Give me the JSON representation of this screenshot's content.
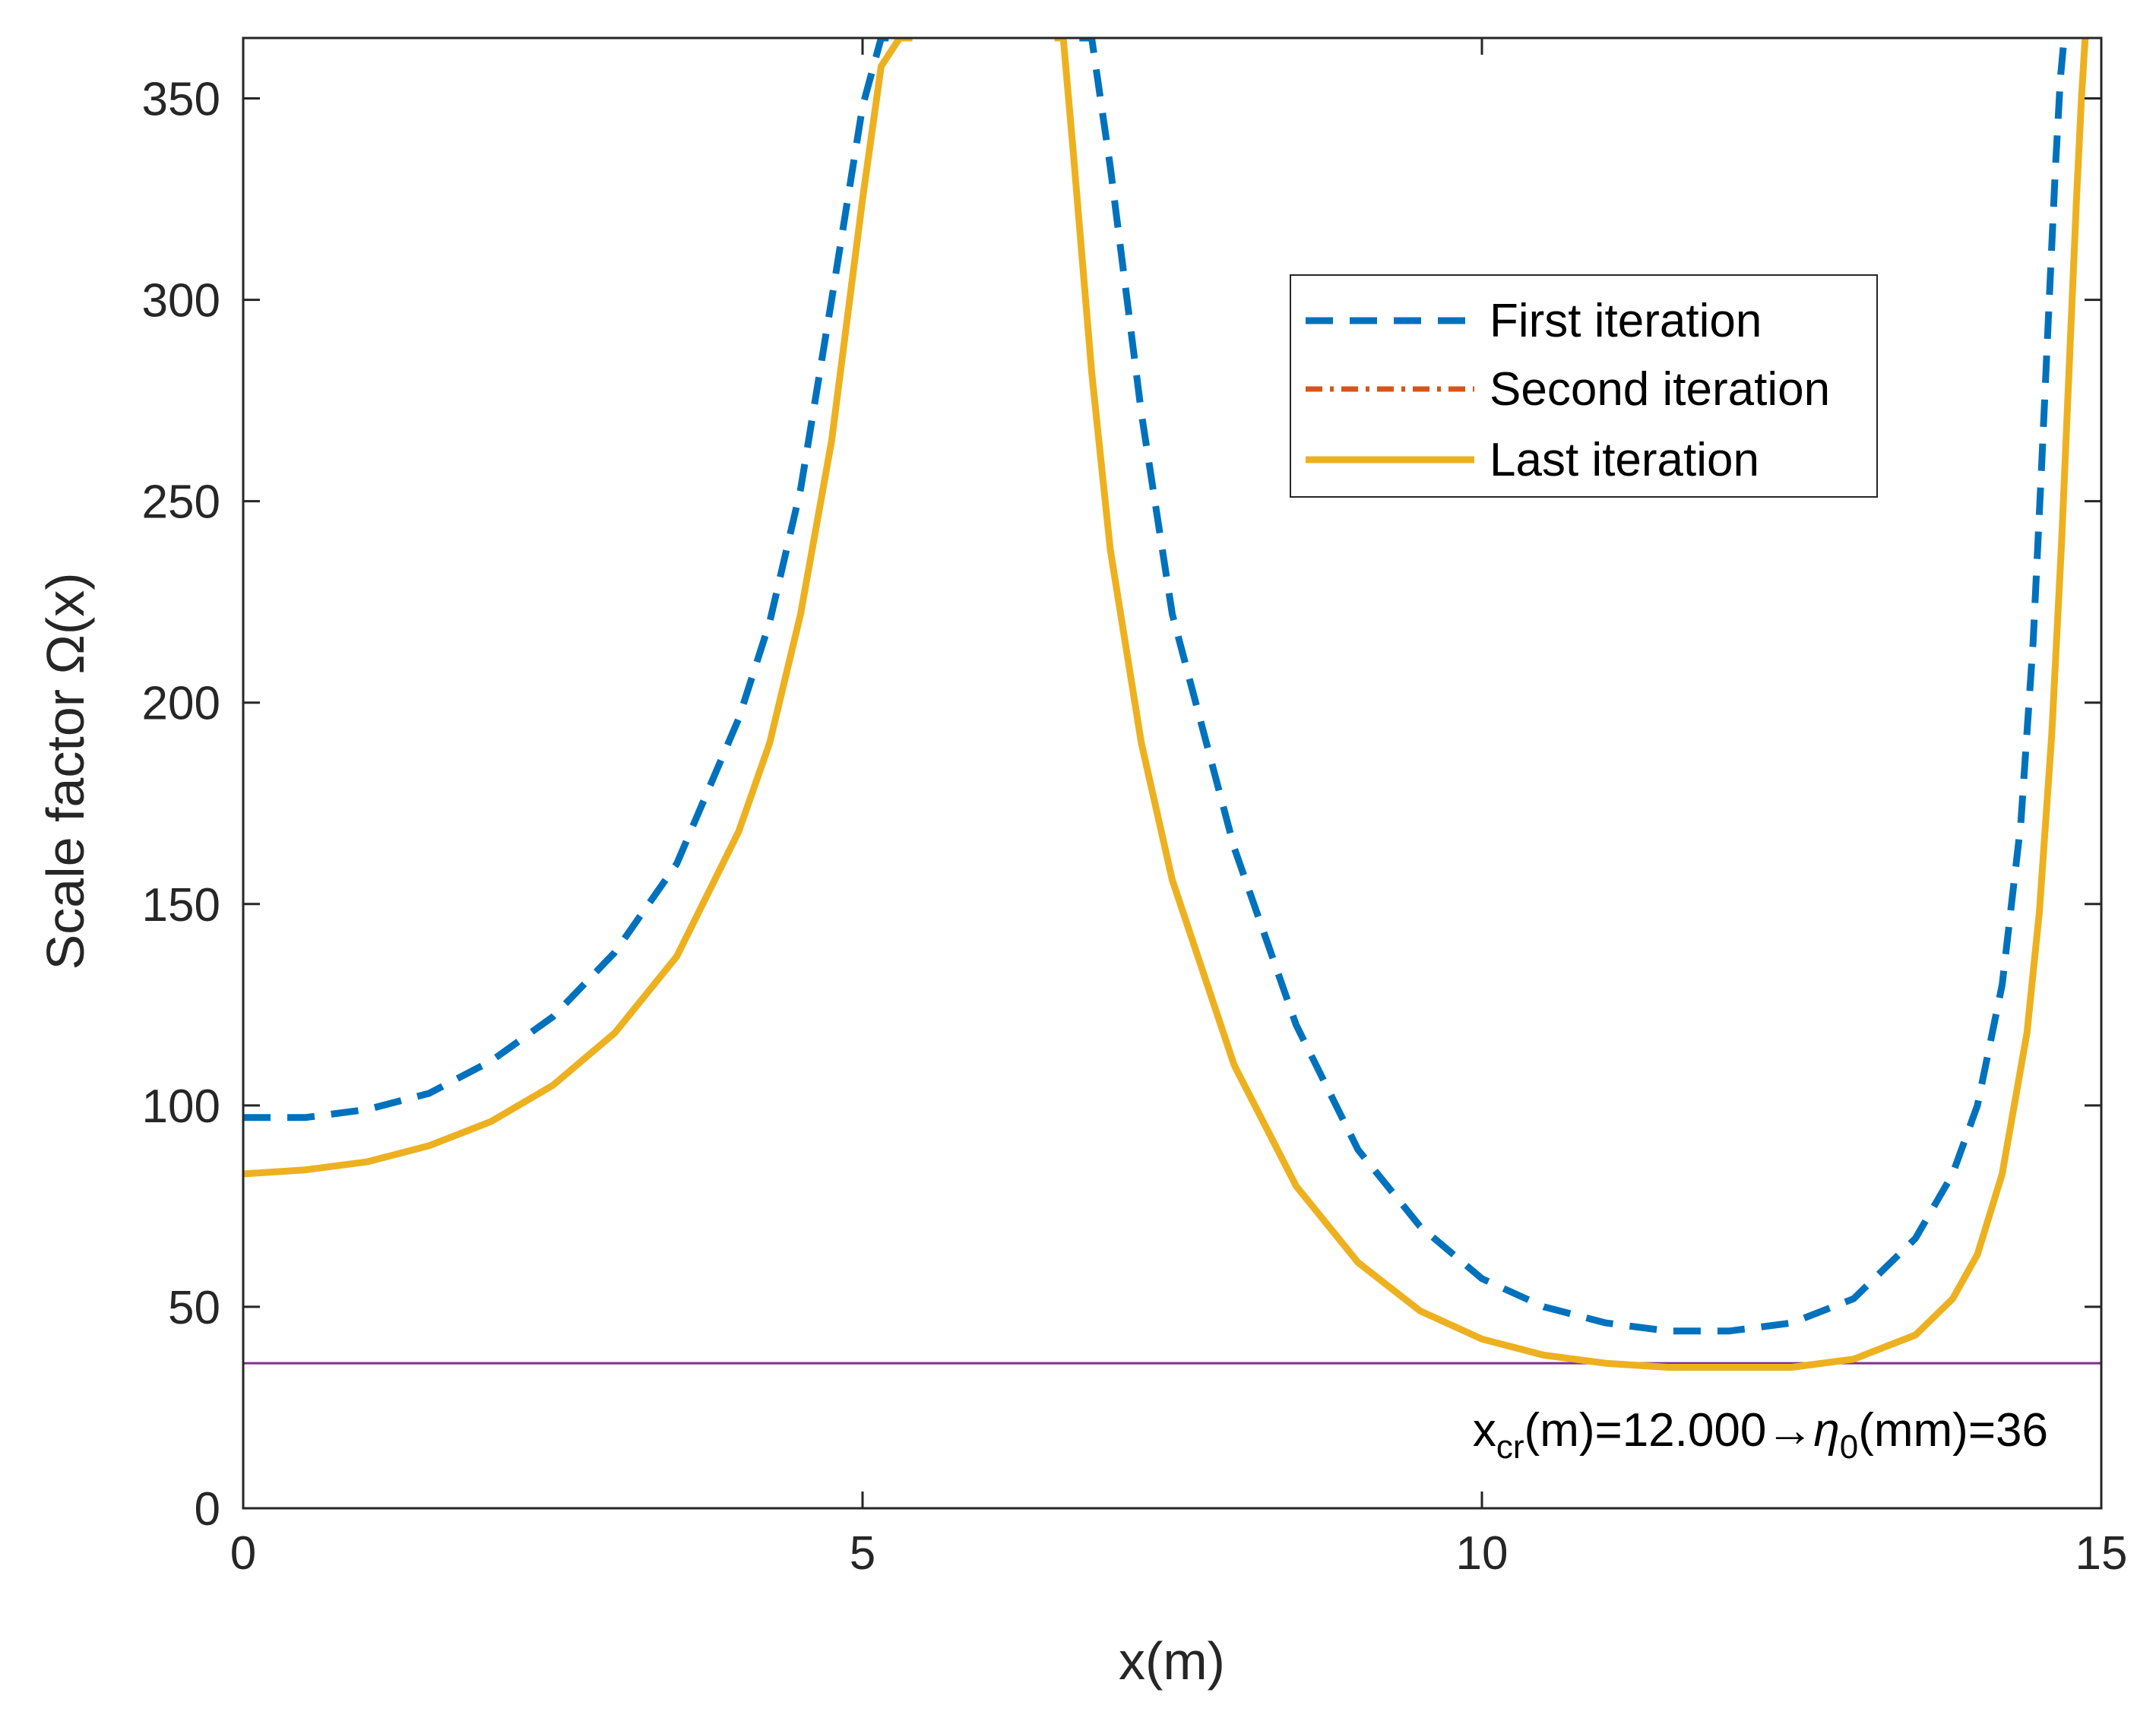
{
  "chart_data": {
    "type": "line",
    "xlabel": "x(m)",
    "ylabel": "Scale factor Ω(x)",
    "xlim": [
      0,
      15
    ],
    "ylim": [
      0,
      365
    ],
    "xticks": [
      0,
      5,
      10,
      15
    ],
    "yticks": [
      0,
      50,
      100,
      150,
      200,
      250,
      300,
      350
    ],
    "grid": false,
    "legend_position": "top-right",
    "series": [
      {
        "name": "First iteration",
        "color": "#0072BD",
        "style": "dashed",
        "x": [
          0,
          0.5,
          1,
          1.5,
          2,
          2.5,
          3,
          3.5,
          4,
          4.25,
          4.5,
          4.75,
          5.0,
          5.15,
          5.3,
          5.4,
          6.75,
          6.85,
          7.0,
          7.25,
          7.5,
          8.0,
          8.5,
          9.0,
          9.5,
          10.0,
          10.5,
          11.0,
          11.5,
          12.0,
          12.5,
          13.0,
          13.5,
          13.8,
          14.0,
          14.2,
          14.35,
          14.45,
          14.52,
          14.58,
          14.63,
          14.67,
          14.7
        ],
        "y": [
          97,
          97,
          99,
          103,
          111,
          122,
          138,
          160,
          196,
          220,
          253,
          300,
          348,
          365,
          365,
          365,
          365,
          365,
          333,
          272,
          222,
          164,
          120,
          89,
          70,
          57,
          50,
          46,
          44,
          44,
          46,
          52,
          67,
          83,
          100,
          130,
          170,
          215,
          260,
          300,
          333,
          355,
          365
        ]
      },
      {
        "name": "Second iteration",
        "color": "#D95319",
        "style": "dash-dot",
        "x": [
          0,
          0.5,
          1,
          1.5,
          2,
          2.5,
          3,
          3.5,
          4,
          4.25,
          4.5,
          4.75,
          5.0,
          5.15,
          5.3,
          5.4,
          6.55,
          6.62,
          6.7,
          6.85,
          7.0,
          7.25,
          7.5,
          8.0,
          8.5,
          9.0,
          9.5,
          10.0,
          10.5,
          11.0,
          11.5,
          12.0,
          12.5,
          13.0,
          13.5,
          13.8,
          14.0,
          14.2,
          14.4,
          14.5,
          14.6,
          14.68,
          14.75,
          14.8,
          14.84,
          14.87
        ],
        "y": [
          83,
          84,
          86,
          90,
          96,
          105,
          118,
          137,
          168,
          190,
          222,
          265,
          325,
          358,
          365,
          365,
          365,
          365,
          337,
          282,
          238,
          190,
          156,
          110,
          80,
          61,
          49,
          42,
          38,
          36,
          35,
          35,
          35,
          37,
          43,
          52,
          63,
          83,
          118,
          148,
          192,
          240,
          290,
          325,
          350,
          365
        ]
      },
      {
        "name": "Last iteration",
        "color": "#EDB120",
        "style": "solid",
        "x": [
          0,
          0.5,
          1,
          1.5,
          2,
          2.5,
          3,
          3.5,
          4,
          4.25,
          4.5,
          4.75,
          5.0,
          5.15,
          5.3,
          5.4,
          6.55,
          6.62,
          6.7,
          6.85,
          7.0,
          7.25,
          7.5,
          8.0,
          8.5,
          9.0,
          9.5,
          10.0,
          10.5,
          11.0,
          11.5,
          12.0,
          12.5,
          13.0,
          13.5,
          13.8,
          14.0,
          14.2,
          14.4,
          14.5,
          14.6,
          14.68,
          14.75,
          14.8,
          14.84,
          14.87
        ],
        "y": [
          83,
          84,
          86,
          90,
          96,
          105,
          118,
          137,
          168,
          190,
          222,
          265,
          325,
          358,
          365,
          365,
          365,
          365,
          337,
          282,
          238,
          190,
          156,
          110,
          80,
          61,
          49,
          42,
          38,
          36,
          35,
          35,
          35,
          37,
          43,
          52,
          63,
          83,
          118,
          148,
          192,
          240,
          290,
          325,
          350,
          365
        ]
      }
    ],
    "reference_line": {
      "y": 36,
      "color": "#7E2F8E"
    },
    "annotation": {
      "x_base": "x",
      "x_sub": "cr",
      "part1": "(m)=12.000→",
      "eta_base": "η",
      "eta_sub": "0",
      "part2": "(mm)=36"
    }
  }
}
